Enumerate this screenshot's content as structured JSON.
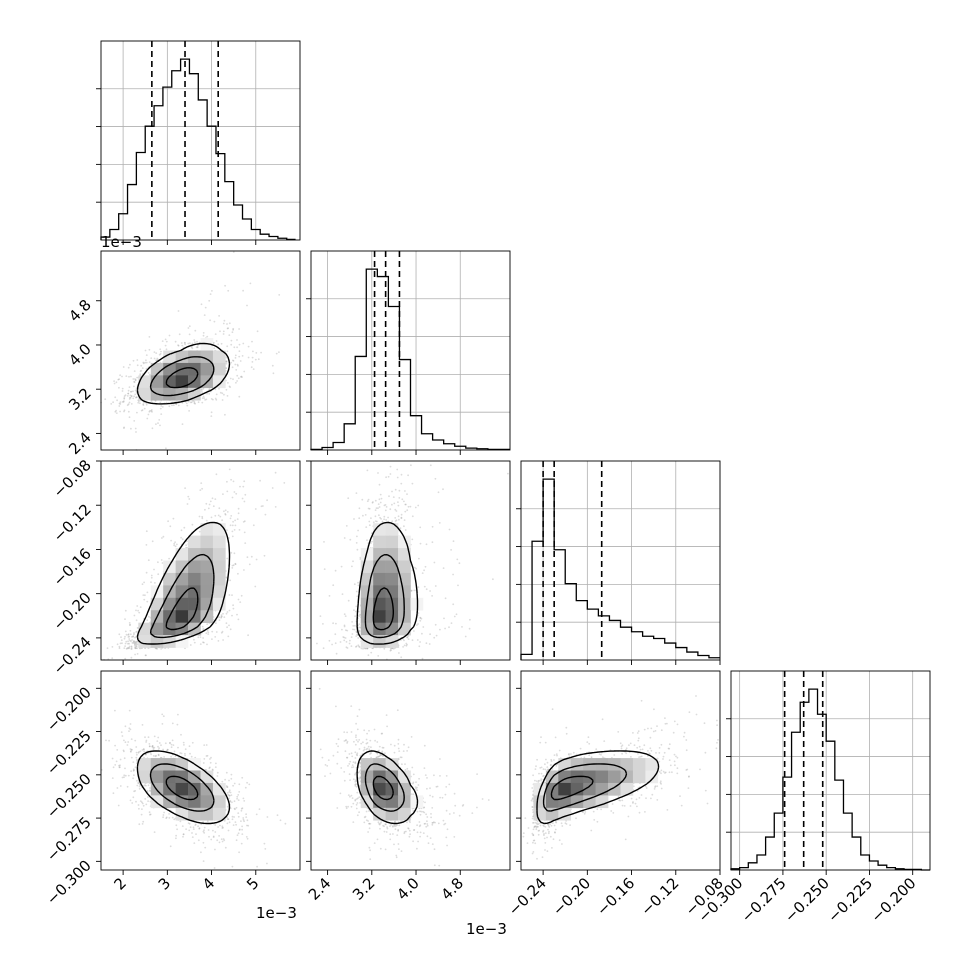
{
  "chart_data": {
    "type": "corner",
    "title": "",
    "grid": true,
    "params": [
      {
        "id": "p0",
        "range": [
          1.5,
          6.0
        ],
        "offset_text": "1e−3",
        "ticks": [
          2,
          3,
          4,
          5
        ],
        "tick_labels": [
          "2",
          "3",
          "4",
          "5"
        ]
      },
      {
        "id": "p1",
        "range": [
          2.1,
          5.7
        ],
        "offset_text": "1e−3",
        "ticks": [
          2.4,
          3.2,
          4.0,
          4.8
        ],
        "tick_labels": [
          "2.4",
          "3.2",
          "4.0",
          "4.8"
        ]
      },
      {
        "id": "p2",
        "range": [
          -0.26,
          -0.08
        ],
        "offset_text": "",
        "ticks": [
          -0.24,
          -0.2,
          -0.16,
          -0.12,
          -0.08
        ],
        "tick_labels": [
          "−0.24",
          "−0.20",
          "−0.16",
          "−0.12",
          "−0.08"
        ]
      },
      {
        "id": "p3",
        "range": [
          -0.305,
          -0.19
        ],
        "offset_text": "",
        "ticks": [
          -0.3,
          -0.275,
          -0.25,
          -0.225,
          -0.2
        ],
        "tick_labels": [
          "−0.300",
          "−0.275",
          "−0.250",
          "−0.225",
          "−0.200"
        ]
      }
    ],
    "histograms": [
      {
        "param": "p0",
        "quantiles": [
          2.65,
          3.4,
          4.15
        ],
        "edges": [
          1.5,
          1.7,
          1.9,
          2.1,
          2.3,
          2.5,
          2.7,
          2.9,
          3.1,
          3.3,
          3.5,
          3.7,
          3.9,
          4.1,
          4.3,
          4.5,
          4.7,
          4.9,
          5.1,
          5.3,
          5.5,
          5.7,
          5.9
        ],
        "counts": [
          5,
          18,
          45,
          95,
          150,
          195,
          230,
          262,
          290,
          310,
          285,
          240,
          195,
          148,
          100,
          60,
          36,
          18,
          10,
          6,
          3,
          1
        ]
      },
      {
        "param": "p1",
        "quantiles": [
          3.25,
          3.45,
          3.7
        ],
        "edges": [
          2.1,
          2.3,
          2.5,
          2.7,
          2.9,
          3.1,
          3.3,
          3.5,
          3.7,
          3.9,
          4.1,
          4.3,
          4.5,
          4.7,
          4.9,
          5.1,
          5.3,
          5.5,
          5.7
        ],
        "counts": [
          1,
          4,
          12,
          42,
          150,
          290,
          278,
          230,
          145,
          55,
          26,
          16,
          10,
          6,
          3,
          2,
          1,
          1
        ]
      },
      {
        "param": "p2",
        "quantiles": [
          -0.24,
          -0.23,
          -0.187
        ],
        "edges": [
          -0.26,
          -0.25,
          -0.24,
          -0.23,
          -0.22,
          -0.21,
          -0.2,
          -0.19,
          -0.18,
          -0.17,
          -0.16,
          -0.15,
          -0.14,
          -0.13,
          -0.12,
          -0.11,
          -0.1,
          -0.09,
          -0.08
        ],
        "counts": [
          10,
          210,
          320,
          195,
          135,
          105,
          90,
          78,
          70,
          58,
          50,
          42,
          38,
          30,
          22,
          14,
          8,
          4
        ]
      },
      {
        "param": "p3",
        "quantiles": [
          -0.274,
          -0.263,
          -0.252
        ],
        "edges": [
          -0.305,
          -0.3,
          -0.295,
          -0.29,
          -0.285,
          -0.28,
          -0.275,
          -0.27,
          -0.265,
          -0.26,
          -0.255,
          -0.25,
          -0.245,
          -0.24,
          -0.235,
          -0.23,
          -0.225,
          -0.22,
          -0.215,
          -0.21,
          -0.205,
          -0.2,
          -0.195,
          -0.19
        ],
        "counts": [
          2,
          4,
          12,
          25,
          55,
          95,
          155,
          230,
          280,
          302,
          260,
          215,
          150,
          95,
          55,
          25,
          15,
          8,
          4,
          2,
          1,
          1,
          0
        ]
      }
    ],
    "pairs": [
      {
        "x": "p0",
        "y": "p1",
        "rho": 0.45
      },
      {
        "x": "p0",
        "y": "p2",
        "rho": 0.65
      },
      {
        "x": "p1",
        "y": "p2",
        "rho": 0.15
      },
      {
        "x": "p0",
        "y": "p3",
        "rho": -0.55
      },
      {
        "x": "p1",
        "y": "p3",
        "rho": -0.4
      },
      {
        "x": "p2",
        "y": "p3",
        "rho": 0.6
      }
    ]
  }
}
